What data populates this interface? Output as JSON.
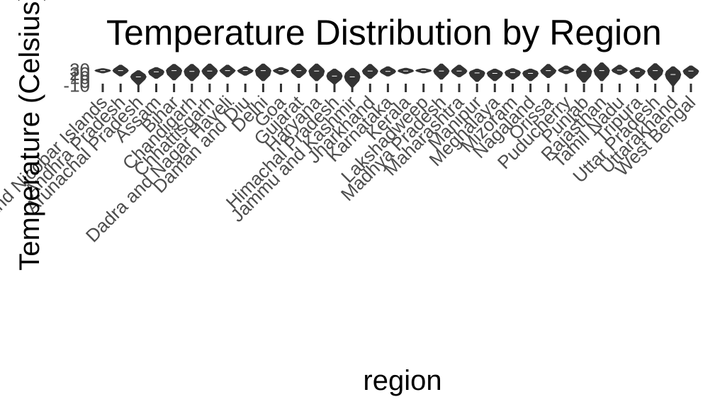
{
  "chart_data": {
    "type": "violin",
    "title": "Temperature Distribution by Region",
    "xlabel": "region",
    "ylabel": "Temperature (Celsius)",
    "y_ticks": [
      "-10",
      "0",
      "10",
      "20",
      "30"
    ],
    "ylim": [
      -20,
      40
    ],
    "categories": [
      "Andaman and Nicobar Islands",
      "Andhra Pradesh",
      "Arunachal Pradesh",
      "Assam",
      "Bihar",
      "Chandigarh",
      "Chhattisgarh",
      "Dadra and Nagar Haveli",
      "Daman and Diu",
      "Delhi",
      "Goa",
      "Gujarat",
      "Haryana",
      "Himachal Pradesh",
      "Jammu and Kashmir",
      "Jharkhand",
      "Karnataka",
      "Kerala",
      "Lakshadweep",
      "Madhya Pradesh",
      "Maharashtra",
      "Manipur",
      "Meghalaya",
      "Mizoram",
      "Nagaland",
      "Orissa",
      "Puducherry",
      "Punjab",
      "Rajasthan",
      "Tamil Nadu",
      "Tripura",
      "Uttar Pradesh",
      "Uttarakhand",
      "West Bengal"
    ],
    "values": [
      {
        "min": 22,
        "q1": 26,
        "median": 28,
        "q3": 30,
        "max": 33
      },
      {
        "min": 14,
        "q1": 24,
        "median": 28,
        "q3": 32,
        "max": 42
      },
      {
        "min": -8,
        "q1": 6,
        "median": 12,
        "q3": 18,
        "max": 28
      },
      {
        "min": 8,
        "q1": 18,
        "median": 25,
        "q3": 29,
        "max": 36
      },
      {
        "min": 4,
        "q1": 18,
        "median": 28,
        "q3": 33,
        "max": 44
      },
      {
        "min": 2,
        "q1": 16,
        "median": 26,
        "q3": 32,
        "max": 44
      },
      {
        "min": 6,
        "q1": 20,
        "median": 27,
        "q3": 32,
        "max": 45
      },
      {
        "min": 12,
        "q1": 24,
        "median": 28,
        "q3": 31,
        "max": 42
      },
      {
        "min": 16,
        "q1": 24,
        "median": 28,
        "q3": 30,
        "max": 38
      },
      {
        "min": 2,
        "q1": 16,
        "median": 28,
        "q3": 33,
        "max": 45
      },
      {
        "min": 18,
        "q1": 25,
        "median": 28,
        "q3": 30,
        "max": 36
      },
      {
        "min": 10,
        "q1": 22,
        "median": 28,
        "q3": 32,
        "max": 45
      },
      {
        "min": 2,
        "q1": 16,
        "median": 27,
        "q3": 32,
        "max": 45
      },
      {
        "min": -6,
        "q1": 6,
        "median": 14,
        "q3": 22,
        "max": 32
      },
      {
        "min": -14,
        "q1": 2,
        "median": 12,
        "q3": 22,
        "max": 34
      },
      {
        "min": 8,
        "q1": 20,
        "median": 27,
        "q3": 31,
        "max": 44
      },
      {
        "min": 14,
        "q1": 22,
        "median": 26,
        "q3": 30,
        "max": 38
      },
      {
        "min": 20,
        "q1": 25,
        "median": 27,
        "q3": 30,
        "max": 34
      },
      {
        "min": 22,
        "q1": 26,
        "median": 28,
        "q3": 30,
        "max": 33
      },
      {
        "min": 6,
        "q1": 20,
        "median": 27,
        "q3": 32,
        "max": 45
      },
      {
        "min": 12,
        "q1": 22,
        "median": 27,
        "q3": 31,
        "max": 42
      },
      {
        "min": 0,
        "q1": 14,
        "median": 22,
        "q3": 26,
        "max": 32
      },
      {
        "min": 2,
        "q1": 14,
        "median": 21,
        "q3": 25,
        "max": 32
      },
      {
        "min": 6,
        "q1": 16,
        "median": 23,
        "q3": 27,
        "max": 33
      },
      {
        "min": 2,
        "q1": 14,
        "median": 21,
        "q3": 26,
        "max": 32
      },
      {
        "min": 10,
        "q1": 22,
        "median": 28,
        "q3": 31,
        "max": 44
      },
      {
        "min": 20,
        "q1": 26,
        "median": 29,
        "q3": 32,
        "max": 40
      },
      {
        "min": -2,
        "q1": 14,
        "median": 26,
        "q3": 32,
        "max": 45
      },
      {
        "min": 2,
        "q1": 18,
        "median": 28,
        "q3": 34,
        "max": 48
      },
      {
        "min": 18,
        "q1": 25,
        "median": 29,
        "q3": 32,
        "max": 42
      },
      {
        "min": 8,
        "q1": 20,
        "median": 26,
        "q3": 29,
        "max": 36
      },
      {
        "min": 4,
        "q1": 18,
        "median": 28,
        "q3": 33,
        "max": 46
      },
      {
        "min": -10,
        "q1": 8,
        "median": 18,
        "q3": 26,
        "max": 38
      },
      {
        "min": 8,
        "q1": 20,
        "median": 27,
        "q3": 30,
        "max": 40
      }
    ],
    "grid": false,
    "colors": {
      "violin": "#333333",
      "box": "#333333",
      "axis_text": "#4d4d4d",
      "title": "#000000",
      "background": "#ffffff"
    }
  }
}
